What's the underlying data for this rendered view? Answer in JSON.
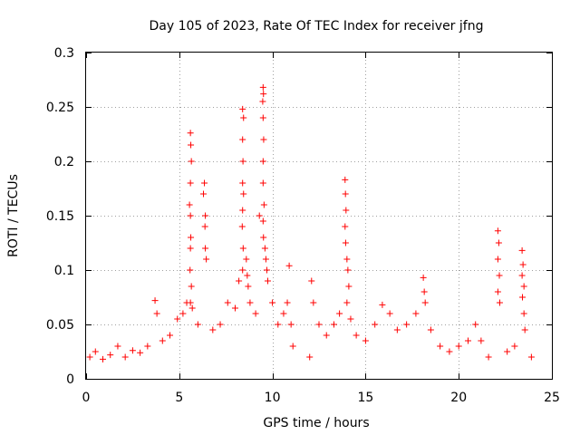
{
  "chart_data": {
    "type": "scatter",
    "title": "Day 105 of 2023, Rate Of TEC Index for receiver jfng",
    "xlabel": "GPS time / hours",
    "ylabel": "ROTI / TECUs",
    "xlim": [
      0,
      25
    ],
    "ylim": [
      0,
      0.3
    ],
    "x_ticks": [
      "0",
      "5",
      "10",
      "15",
      "20",
      "25"
    ],
    "y_ticks": [
      "0",
      "0.05",
      "0.1",
      "0.15",
      "0.2",
      "0.25",
      "0.3"
    ],
    "grid": true,
    "marker": "plus",
    "color": "#ff0000",
    "series": [
      {
        "name": "ROTI",
        "points": [
          [
            0.2,
            0.02
          ],
          [
            0.5,
            0.025
          ],
          [
            0.9,
            0.018
          ],
          [
            1.3,
            0.022
          ],
          [
            1.7,
            0.03
          ],
          [
            2.1,
            0.02
          ],
          [
            2.5,
            0.026
          ],
          [
            2.9,
            0.024
          ],
          [
            3.3,
            0.03
          ],
          [
            3.7,
            0.072
          ],
          [
            3.8,
            0.06
          ],
          [
            4.1,
            0.035
          ],
          [
            4.5,
            0.04
          ],
          [
            4.9,
            0.055
          ],
          [
            5.2,
            0.06
          ],
          [
            5.4,
            0.07
          ],
          [
            5.6,
            0.226
          ],
          [
            5.62,
            0.215
          ],
          [
            5.65,
            0.2
          ],
          [
            5.6,
            0.18
          ],
          [
            5.55,
            0.16
          ],
          [
            5.6,
            0.15
          ],
          [
            5.62,
            0.13
          ],
          [
            5.6,
            0.12
          ],
          [
            5.58,
            0.1
          ],
          [
            5.65,
            0.085
          ],
          [
            5.6,
            0.07
          ],
          [
            5.7,
            0.065
          ],
          [
            6.0,
            0.05
          ],
          [
            6.3,
            0.17
          ],
          [
            6.35,
            0.18
          ],
          [
            6.4,
            0.15
          ],
          [
            6.38,
            0.14
          ],
          [
            6.4,
            0.12
          ],
          [
            6.45,
            0.11
          ],
          [
            6.8,
            0.045
          ],
          [
            7.2,
            0.05
          ],
          [
            7.6,
            0.07
          ],
          [
            8.0,
            0.065
          ],
          [
            8.2,
            0.09
          ],
          [
            8.4,
            0.248
          ],
          [
            8.45,
            0.24
          ],
          [
            8.4,
            0.22
          ],
          [
            8.42,
            0.2
          ],
          [
            8.4,
            0.18
          ],
          [
            8.45,
            0.17
          ],
          [
            8.4,
            0.155
          ],
          [
            8.38,
            0.14
          ],
          [
            8.43,
            0.12
          ],
          [
            8.4,
            0.1
          ],
          [
            8.6,
            0.11
          ],
          [
            8.65,
            0.095
          ],
          [
            8.7,
            0.085
          ],
          [
            8.8,
            0.07
          ],
          [
            9.1,
            0.06
          ],
          [
            9.3,
            0.15
          ],
          [
            9.5,
            0.268
          ],
          [
            9.52,
            0.262
          ],
          [
            9.48,
            0.255
          ],
          [
            9.5,
            0.24
          ],
          [
            9.53,
            0.22
          ],
          [
            9.5,
            0.2
          ],
          [
            9.5,
            0.18
          ],
          [
            9.55,
            0.16
          ],
          [
            9.5,
            0.145
          ],
          [
            9.52,
            0.13
          ],
          [
            9.6,
            0.12
          ],
          [
            9.65,
            0.11
          ],
          [
            9.7,
            0.1
          ],
          [
            9.75,
            0.09
          ],
          [
            10.0,
            0.07
          ],
          [
            10.3,
            0.05
          ],
          [
            10.6,
            0.06
          ],
          [
            10.8,
            0.07
          ],
          [
            10.9,
            0.104
          ],
          [
            11.0,
            0.05
          ],
          [
            11.1,
            0.03
          ],
          [
            12.0,
            0.02
          ],
          [
            12.1,
            0.09
          ],
          [
            12.2,
            0.07
          ],
          [
            12.5,
            0.05
          ],
          [
            12.9,
            0.04
          ],
          [
            13.3,
            0.05
          ],
          [
            13.6,
            0.06
          ],
          [
            13.9,
            0.183
          ],
          [
            13.92,
            0.17
          ],
          [
            13.95,
            0.155
          ],
          [
            13.9,
            0.14
          ],
          [
            13.93,
            0.125
          ],
          [
            14.0,
            0.11
          ],
          [
            14.05,
            0.1
          ],
          [
            14.1,
            0.085
          ],
          [
            14.0,
            0.07
          ],
          [
            14.2,
            0.055
          ],
          [
            14.5,
            0.04
          ],
          [
            15.0,
            0.035
          ],
          [
            15.5,
            0.05
          ],
          [
            15.9,
            0.068
          ],
          [
            16.3,
            0.06
          ],
          [
            16.7,
            0.045
          ],
          [
            17.2,
            0.05
          ],
          [
            17.7,
            0.06
          ],
          [
            18.1,
            0.093
          ],
          [
            18.15,
            0.08
          ],
          [
            18.2,
            0.07
          ],
          [
            18.5,
            0.045
          ],
          [
            19.0,
            0.03
          ],
          [
            19.5,
            0.025
          ],
          [
            20.0,
            0.03
          ],
          [
            20.5,
            0.035
          ],
          [
            20.9,
            0.05
          ],
          [
            21.2,
            0.035
          ],
          [
            21.6,
            0.02
          ],
          [
            22.1,
            0.136
          ],
          [
            22.15,
            0.125
          ],
          [
            22.1,
            0.11
          ],
          [
            22.18,
            0.095
          ],
          [
            22.1,
            0.08
          ],
          [
            22.2,
            0.07
          ],
          [
            22.6,
            0.025
          ],
          [
            23.0,
            0.03
          ],
          [
            23.4,
            0.118
          ],
          [
            23.45,
            0.105
          ],
          [
            23.4,
            0.095
          ],
          [
            23.5,
            0.085
          ],
          [
            23.42,
            0.075
          ],
          [
            23.5,
            0.06
          ],
          [
            23.55,
            0.045
          ],
          [
            23.9,
            0.02
          ]
        ]
      }
    ]
  }
}
